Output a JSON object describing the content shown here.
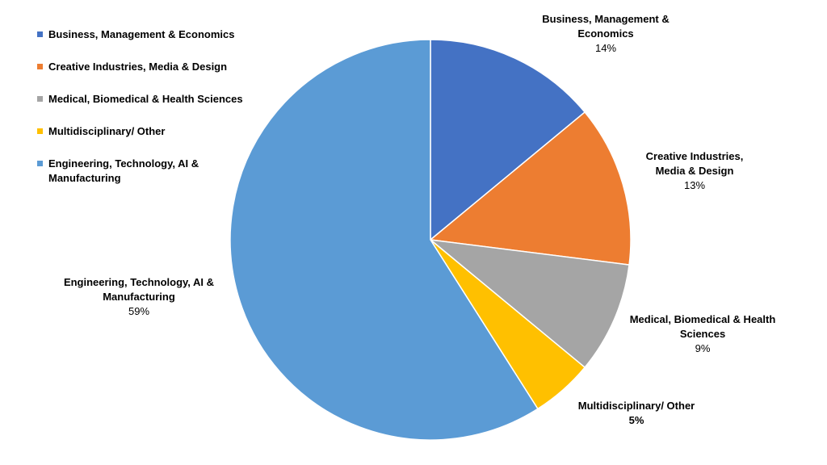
{
  "chart_data": {
    "type": "pie",
    "legend_position": "top-left",
    "slices": [
      {
        "name": "Business, Management & Economics",
        "label_lines": [
          "Business, Management &",
          "Economics"
        ],
        "value": 14,
        "pct_label": "14%",
        "color": "#4472C4"
      },
      {
        "name": "Creative Industries, Media & Design",
        "label_lines": [
          "Creative Industries,",
          "Media & Design"
        ],
        "value": 13,
        "pct_label": "13%",
        "color": "#ED7D31"
      },
      {
        "name": "Medical, Biomedical & Health Sciences",
        "label_lines": [
          "Medical, Biomedical & Health",
          "Sciences"
        ],
        "value": 9,
        "pct_label": "9%",
        "color": "#A5A5A5"
      },
      {
        "name": "Multidisciplinary/ Other",
        "label_lines": [
          "Multidisciplinary/ Other"
        ],
        "value": 5,
        "pct_label": "5%",
        "color": "#FFC000"
      },
      {
        "name": "Engineering, Technology, AI & Manufacturing",
        "label_lines": [
          "Engineering, Technology, AI &",
          "Manufacturing"
        ],
        "value": 59,
        "pct_label": "59%",
        "color": "#5B9BD5"
      }
    ],
    "legend": [
      {
        "label": "Business, Management & Economics",
        "color": "#4472C4"
      },
      {
        "label": "Creative Industries, Media & Design",
        "color": "#ED7D31"
      },
      {
        "label": "Medical, Biomedical & Health Sciences",
        "color": "#A5A5A5"
      },
      {
        "label": "Multidisciplinary/ Other",
        "color": "#FFC000"
      },
      {
        "label": "Engineering, Technology, AI & Manufacturing",
        "color": "#5B9BD5"
      }
    ]
  }
}
